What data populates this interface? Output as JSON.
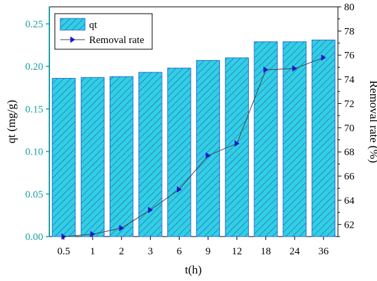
{
  "chart_data": {
    "type": "bar+line",
    "categories": [
      "0.5",
      "1",
      "2",
      "3",
      "6",
      "9",
      "12",
      "18",
      "24",
      "36"
    ],
    "xlabel": "t(h)",
    "bar_series": {
      "name": "qt",
      "values": [
        0.186,
        0.187,
        0.188,
        0.193,
        0.198,
        0.207,
        0.21,
        0.229,
        0.229,
        0.231
      ],
      "ylabel": "qt (mg/g)",
      "ylim": [
        0,
        0.27
      ],
      "yticks": [
        "0.00",
        "0.05",
        "0.10",
        "0.15",
        "0.20",
        "0.25"
      ],
      "fill_color": "#2fd1e0",
      "hatch_color": "#3a3ad8",
      "edge_color": "#2a6fd8"
    },
    "line_series": {
      "name": "Removal rate",
      "values": [
        61.0,
        61.2,
        61.7,
        63.2,
        64.9,
        67.7,
        68.7,
        74.8,
        74.9,
        75.8
      ],
      "ylabel": "Removal rate (%)",
      "ylim": [
        61,
        80
      ],
      "yticks": [
        "62",
        "64",
        "66",
        "68",
        "70",
        "72",
        "74",
        "76",
        "78",
        "80"
      ],
      "line_color": "#444444",
      "marker_color": "#1a1acc"
    },
    "legend_position": "top-left",
    "left_axis_color": "#1aa0a0"
  }
}
